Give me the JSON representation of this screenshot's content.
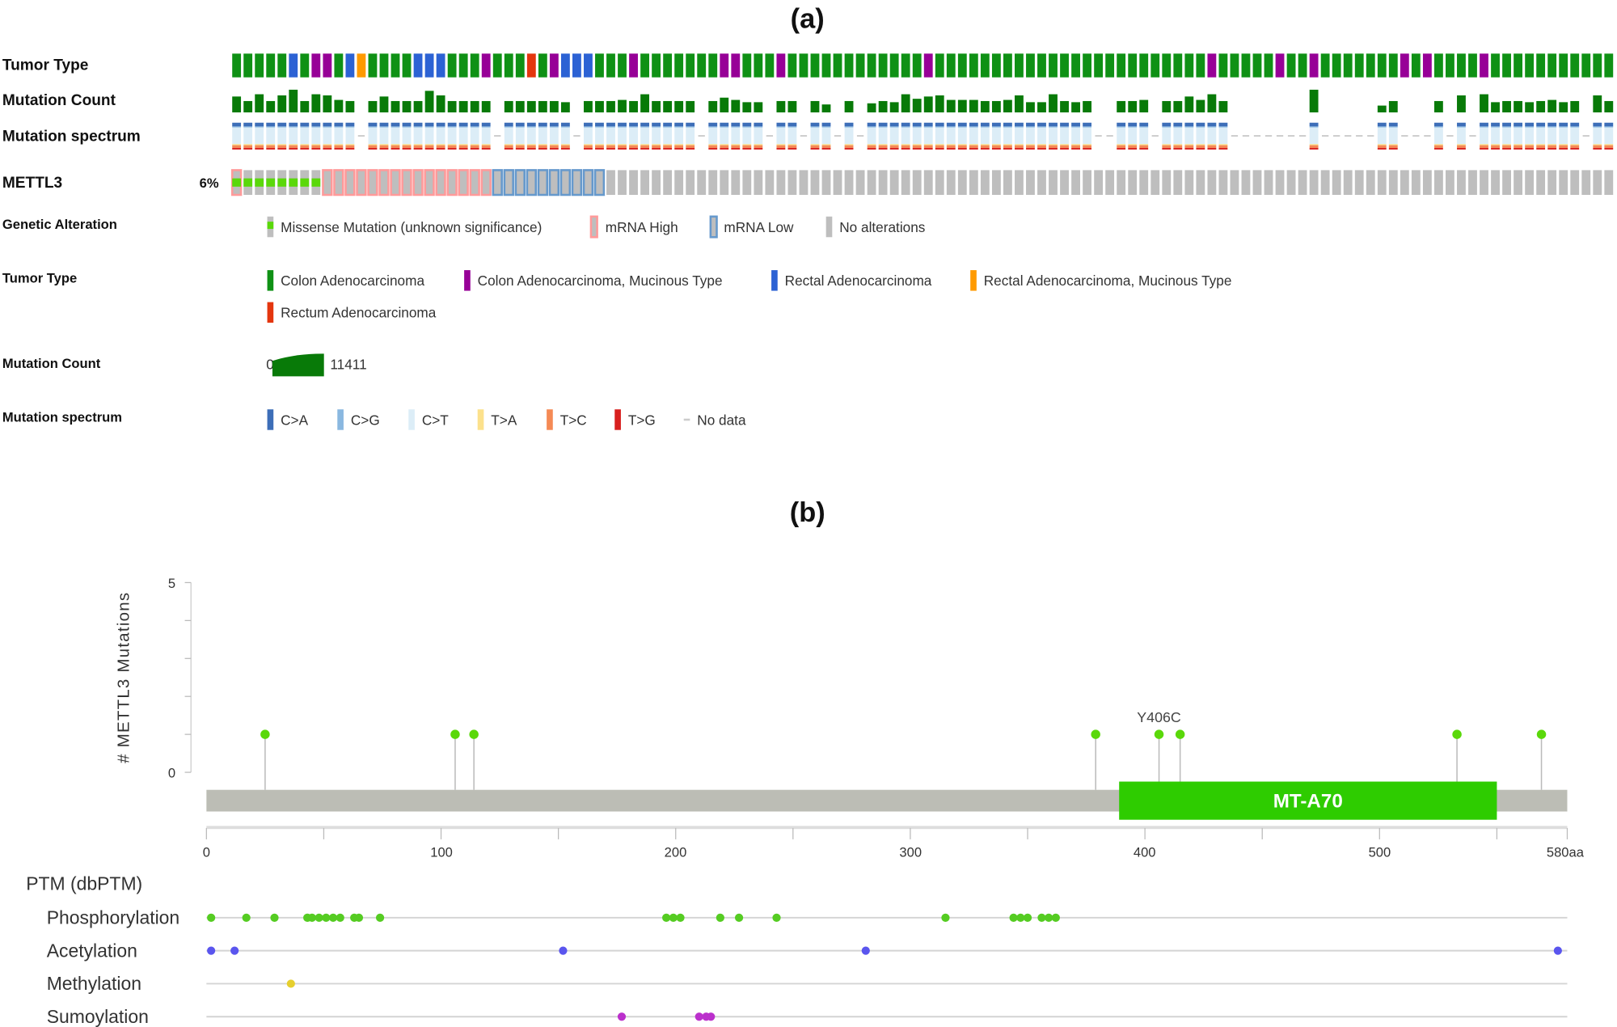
{
  "panels": {
    "a": "(a)",
    "b": "(b)"
  },
  "oncoprint": {
    "track_labels": {
      "tumor_type": "Tumor Type",
      "mutation_count": "Mutation Count",
      "mutation_spectrum": "Mutation spectrum",
      "gene": "METTL3"
    },
    "gene_altered_percent": "6%",
    "tumor_type_sequence": "GGGGGBGPPGBOGGGGBBBGGGPGGGEGPBBBGGGPGGGGGGGPPGGGPGGGGGGGGGGGGPGGGGGGGGGGGGGGGGGGGGGGGGPGGGGGPGGPGGGGGGGPGPGGGGPGGGGGGGGGGG",
    "tumor_type_codes": {
      "G": "Colon Adenocarcinoma",
      "P": "Colon Adenocarcinoma, Mucinous Type",
      "B": "Rectal Adenocarcinoma",
      "O": "Rectal Adenocarcinoma, Mucinous Type",
      "E": "Rectum Adenocarcinoma"
    },
    "mutation_count_fraction_of_max": [
      0.7,
      0.5,
      0.8,
      0.5,
      0.75,
      1,
      0.5,
      0.8,
      0.75,
      0.55,
      0.5,
      null,
      0.5,
      0.7,
      0.5,
      0.5,
      0.5,
      0.95,
      0.75,
      0.5,
      0.5,
      0.5,
      0.5,
      null,
      0.5,
      0.5,
      0.5,
      0.5,
      0.5,
      0.45,
      null,
      0.5,
      0.5,
      0.5,
      0.55,
      0.5,
      0.8,
      0.5,
      0.5,
      0.5,
      0.5,
      null,
      0.5,
      0.65,
      0.55,
      0.45,
      0.45,
      null,
      0.5,
      0.5,
      null,
      0.5,
      0.35,
      null,
      0.5,
      null,
      0.4,
      0.5,
      0.45,
      0.8,
      0.6,
      0.7,
      0.75,
      0.55,
      0.55,
      0.55,
      0.5,
      0.5,
      0.55,
      0.75,
      0.45,
      0.45,
      0.8,
      0.5,
      0.45,
      0.5,
      null,
      null,
      0.5,
      0.5,
      0.55,
      null,
      0.5,
      0.5,
      0.7,
      0.55,
      0.8,
      0.5,
      null,
      null,
      null,
      null,
      null,
      null,
      null,
      1.0,
      null,
      null,
      null,
      null,
      null,
      0.3,
      0.5,
      null,
      null,
      null,
      0.5,
      null,
      0.75,
      null,
      0.8,
      0.45,
      0.5,
      0.5,
      0.45,
      0.5,
      0.55,
      0.45,
      0.5,
      null,
      0.75,
      0.5
    ],
    "spectrum_profile": {
      "C>A": 0.14,
      "C>G": 0.04,
      "C>T": 0.62,
      "T>A": 0.04,
      "T>C": 0.1,
      "T>G": 0.06
    },
    "alteration_runs": [
      [
        "missense+mrna_high",
        1
      ],
      [
        "missense",
        7
      ],
      [
        "mrna_high",
        15
      ],
      [
        "mrna_low",
        10
      ],
      [
        "none",
        89
      ]
    ]
  },
  "legend": {
    "genetic_alteration": {
      "label": "Genetic Alteration",
      "items": [
        "Missense Mutation (unknown significance)",
        "mRNA High",
        "mRNA Low",
        "No alterations"
      ]
    },
    "tumor_type": {
      "label": "Tumor Type",
      "items": [
        "Colon Adenocarcinoma",
        "Colon Adenocarcinoma, Mucinous Type",
        "Rectal Adenocarcinoma",
        "Rectal Adenocarcinoma, Mucinous Type",
        "Rectum Adenocarcinoma"
      ]
    },
    "mutation_count": {
      "label": "Mutation Count",
      "min": "0",
      "max": "11411"
    },
    "mutation_spectrum": {
      "label": "Mutation spectrum",
      "items": [
        "C>A",
        "C>G",
        "C>T",
        "T>A",
        "T>C",
        "T>G",
        "No data"
      ]
    }
  },
  "colors": {
    "colon": "#0f9115",
    "colon_mucinous": "#970097",
    "rectal": "#2c62d4",
    "rectal_mucinous": "#ff9a00",
    "rectum": "#e4360e",
    "mutation_count": "#087a08",
    "missense": "#5ad80a",
    "mrna_high": "#ff9a9a",
    "mrna_low": "#6699cc",
    "no_alteration": "#bebebe",
    "C>A": "#3d6eb8",
    "C>G": "#8ab8e0",
    "C>T": "#dcedf7",
    "T>A": "#fce18c",
    "T>C": "#f58a55",
    "T>G": "#d8201e",
    "domain": "#2ecc00",
    "protein": "#bcbdb5",
    "phospho": "#55cc22",
    "acetyl": "#5a55ee",
    "methyl": "#e6cf2e",
    "sumo": "#bb30cc"
  },
  "chart_data": {
    "type": "lollipop",
    "ylabel": "# METTL3 Mutations",
    "ylim": [
      0,
      5
    ],
    "y_ticks": [
      "0",
      "5"
    ],
    "xlim": [
      0,
      580
    ],
    "x_ticks": [
      "0",
      "100",
      "200",
      "300",
      "400",
      "500",
      "580aa"
    ],
    "mutations": [
      {
        "position": 25,
        "count": 1
      },
      {
        "position": 106,
        "count": 1
      },
      {
        "position": 114,
        "count": 1
      },
      {
        "position": 379,
        "count": 1
      },
      {
        "position": 406,
        "count": 1,
        "label": "Y406C"
      },
      {
        "position": 415,
        "count": 1
      },
      {
        "position": 533,
        "count": 1
      },
      {
        "position": 569,
        "count": 1
      }
    ],
    "domains": [
      {
        "name": "MT-A70",
        "start": 389,
        "end": 550
      }
    ],
    "ptm": {
      "title": "PTM (dbPTM)",
      "tracks": [
        {
          "name": "Phosphorylation",
          "color_key": "phospho",
          "positions": [
            2,
            17,
            29,
            43,
            45,
            48,
            51,
            54,
            57,
            63,
            65,
            74,
            196,
            199,
            202,
            219,
            227,
            243,
            315,
            344,
            347,
            350,
            356,
            359,
            362
          ]
        },
        {
          "name": "Acetylation",
          "color_key": "acetyl",
          "positions": [
            2,
            12,
            152,
            281,
            576
          ]
        },
        {
          "name": "Methylation",
          "color_key": "methyl",
          "positions": [
            36
          ]
        },
        {
          "name": "Sumoylation",
          "color_key": "sumo",
          "positions": [
            177,
            210,
            213,
            215
          ]
        }
      ]
    }
  }
}
